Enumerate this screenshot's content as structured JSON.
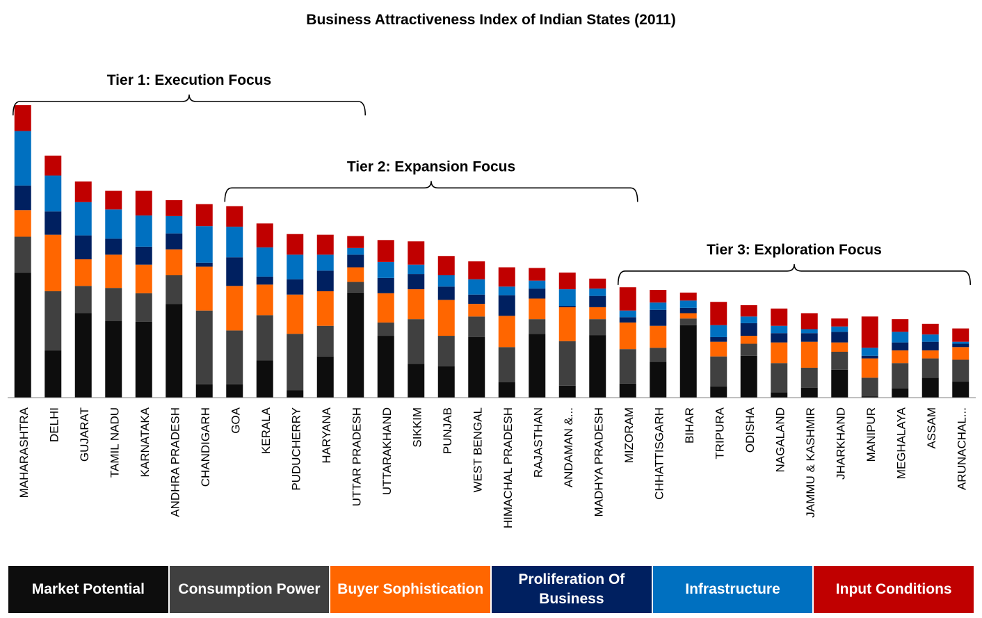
{
  "chart_data": {
    "type": "bar",
    "stacked": true,
    "title": "Business Attractiveness Index of Indian States (2011)",
    "categories": [
      "MAHARASHTRA",
      "DELHI",
      "GUJARAT",
      "TAMIL NADU",
      "KARNATAKA",
      "ANDHRA PRADESH",
      "CHANDIGARH",
      "GOA",
      "KERALA",
      "PUDUCHERRY",
      "HARYANA",
      "UTTAR PRADESH",
      "UTTARAKHAND",
      "SIKKIM",
      "PUNJAB",
      "WEST BENGAL",
      "HIMACHAL PRADESH",
      "RAJASTHAN",
      "ANDAMAN &...",
      "MADHYA PRADESH",
      "MIZORAM",
      "CHHATTISGARH",
      "BIHAR",
      "TRIPURA",
      "ODISHA",
      "NAGALAND",
      "JAMMU & KASHMIR",
      "JHARKHAND",
      "MANIPUR",
      "MEGHALAYA",
      "ASSAM",
      "ARUNACHAL..."
    ],
    "series": [
      {
        "name": "Market Potential",
        "color": "#0d0d0d",
        "values": [
          188,
          71,
          127,
          115,
          114,
          141,
          20,
          20,
          56,
          11,
          62,
          158,
          93,
          51,
          47,
          91,
          23,
          96,
          18,
          94,
          21,
          54,
          109,
          17,
          63,
          8,
          15,
          42,
          2,
          14,
          30,
          24
        ]
      },
      {
        "name": "Consumption Power",
        "color": "#404040",
        "values": [
          54,
          89,
          41,
          50,
          43,
          43,
          111,
          81,
          68,
          85,
          46,
          16,
          20,
          67,
          46,
          31,
          53,
          22,
          67,
          24,
          52,
          21,
          10,
          45,
          18,
          44,
          30,
          27,
          28,
          38,
          29,
          33
        ]
      },
      {
        "name": "Buyer Sophistication",
        "color": "#ff6600",
        "values": [
          40,
          85,
          40,
          50,
          43,
          39,
          66,
          67,
          46,
          59,
          52,
          22,
          44,
          45,
          54,
          19,
          47,
          31,
          51,
          18,
          40,
          33,
          8,
          22,
          12,
          31,
          39,
          14,
          29,
          19,
          12,
          19
        ]
      },
      {
        "name": "Proliferation Of Business",
        "color": "#002060",
        "values": [
          37,
          35,
          36,
          24,
          27,
          24,
          6,
          43,
          12,
          23,
          31,
          19,
          23,
          23,
          20,
          14,
          31,
          15,
          2,
          17,
          8,
          24,
          8,
          7,
          19,
          14,
          13,
          16,
          4,
          12,
          13,
          5
        ]
      },
      {
        "name": "Infrastructure",
        "color": "#0070c0",
        "values": [
          82,
          54,
          50,
          44,
          47,
          26,
          55,
          46,
          44,
          37,
          24,
          10,
          24,
          14,
          17,
          23,
          13,
          12,
          25,
          11,
          10,
          11,
          11,
          18,
          10,
          11,
          6,
          8,
          12,
          16,
          11,
          3
        ]
      },
      {
        "name": "Input Conditions",
        "color": "#c00000",
        "values": [
          39,
          30,
          31,
          28,
          37,
          24,
          33,
          31,
          36,
          31,
          30,
          18,
          33,
          35,
          29,
          27,
          29,
          19,
          25,
          15,
          35,
          19,
          12,
          35,
          17,
          26,
          24,
          12,
          47,
          19,
          16,
          20
        ]
      }
    ],
    "ylim": [
      0,
      460
    ],
    "annotations": [
      {
        "label": "Tier 1: Execution Focus",
        "from": "MAHARASHTRA",
        "to": "UTTAR PRADESH",
        "level": 460
      },
      {
        "label": "Tier 2: Expansion Focus",
        "from": "GOA",
        "to": "MIZORAM",
        "level": 330
      },
      {
        "label": "Tier 3: Exploration Focus",
        "from": "MIZORAM",
        "to": "ARUNACHAL...",
        "level": 205
      }
    ]
  },
  "legend": {
    "items": [
      {
        "label": "Market Potential",
        "color": "#0d0d0d"
      },
      {
        "label": "Consumption Power",
        "color": "#404040"
      },
      {
        "label": "Buyer Sophistication",
        "color": "#ff6600"
      },
      {
        "label": "Proliferation Of Business",
        "color": "#002060"
      },
      {
        "label": "Infrastructure",
        "color": "#0070c0"
      },
      {
        "label": "Input Conditions",
        "color": "#c00000"
      }
    ]
  }
}
